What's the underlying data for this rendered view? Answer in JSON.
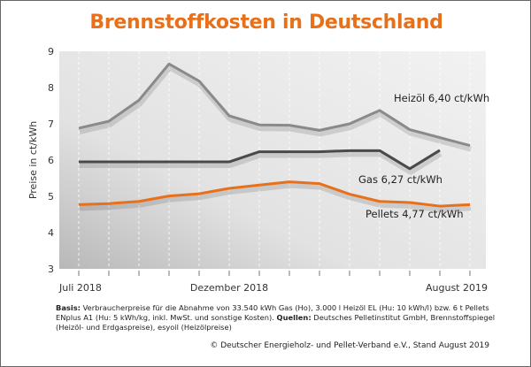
{
  "chart_data": {
    "type": "line",
    "title": "Brennstoffkosten in Deutschland",
    "ylabel": "Preise in ct/kWh",
    "ylim": [
      3,
      9
    ],
    "yticks": [
      "3",
      "4",
      "5",
      "6",
      "7",
      "8",
      "9"
    ],
    "x": [
      "Jul 2018",
      "Aug 2018",
      "Sep 2018",
      "Okt 2018",
      "Nov 2018",
      "Dez 2018",
      "Jan 2019",
      "Feb 2019",
      "Mär 2019",
      "Apr 2019",
      "Mai 2019",
      "Jun 2019",
      "Jul 2019",
      "Aug 2019"
    ],
    "xtick_labels": [
      {
        "index": 0,
        "label": "Juli 2018"
      },
      {
        "index": 5,
        "label": "Dezember 2018"
      },
      {
        "index": 13,
        "label": "August 2019"
      }
    ],
    "grid": true,
    "series": [
      {
        "name": "Heizöl",
        "label": "Heizöl 6,40 ct/kWh",
        "color": "#8a8a8a",
        "values": [
          6.88,
          7.07,
          7.65,
          8.65,
          8.18,
          7.22,
          6.97,
          6.96,
          6.82,
          7.0,
          7.37,
          6.84,
          6.62,
          6.4
        ]
      },
      {
        "name": "Gas",
        "label": "Gas  6,27 ct/kWh",
        "color": "#4a4a4a",
        "values": [
          5.95,
          5.95,
          5.95,
          5.95,
          5.95,
          5.95,
          6.23,
          6.23,
          6.23,
          6.26,
          6.26,
          5.76,
          6.27,
          null
        ]
      },
      {
        "name": "Pellets",
        "label": "Pellets  4,77 ct/kWh",
        "color": "#e8701a",
        "values": [
          4.77,
          4.8,
          4.86,
          5.01,
          5.07,
          5.22,
          5.31,
          5.4,
          5.35,
          5.06,
          4.86,
          4.83,
          4.73,
          4.77
        ]
      }
    ]
  },
  "footer": {
    "basis_label": "Basis:",
    "basis_text": " Verbraucherpreise für die Abnahme von 33.540 kWh Gas (Ho), 3.000 l Heizöl EL (Hu: 10 kWh/l) bzw. 6 t Pellets ENplus A1 (Hu: 5 kWh/kg, inkl. MwSt. und sonstige Kosten). ",
    "sources_label": "Quellen:",
    "sources_text": " Deutsches Pelletinstitut GmbH, Brennstoffspiegel (Heizöl- und Erdgaspreise), esyoil (Heizölpreise)",
    "copyright": "© Deutscher Energieholz- und Pellet-Verband e.V., Stand August 2019"
  }
}
